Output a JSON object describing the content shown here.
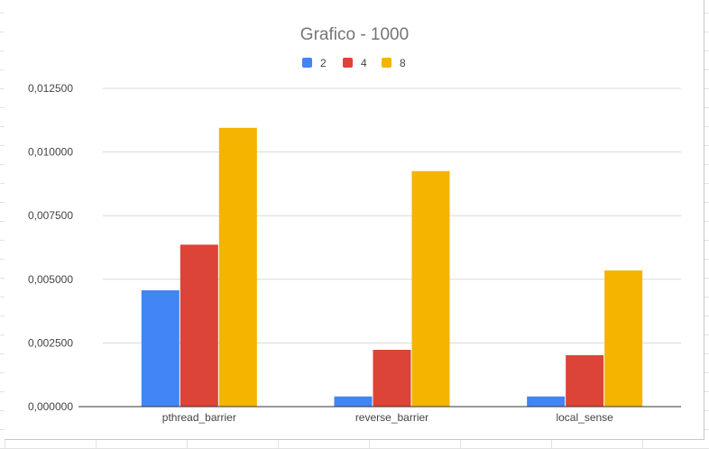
{
  "chart_data": {
    "type": "bar",
    "title": "Grafico - 1000",
    "xlabel": "",
    "ylabel": "",
    "categories": [
      "pthread_barrier",
      "reverse_barrier",
      "local_sense"
    ],
    "series": [
      {
        "name": "2",
        "color": "#4285f4",
        "values": [
          0.00457,
          0.0004,
          0.0004
        ]
      },
      {
        "name": "4",
        "color": "#db4437",
        "values": [
          0.00636,
          0.00223,
          0.00202
        ]
      },
      {
        "name": "8",
        "color": "#f4b400",
        "values": [
          0.01095,
          0.00925,
          0.00535
        ]
      }
    ],
    "ylim": [
      0,
      0.0125
    ],
    "yticks": [
      "0,000000",
      "0,002500",
      "0,005000",
      "0,007500",
      "0,010000",
      "0,012500"
    ],
    "ytick_values": [
      0,
      0.0025,
      0.005,
      0.0075,
      0.01,
      0.0125
    ],
    "grid": true,
    "legend_position": "top-center"
  }
}
